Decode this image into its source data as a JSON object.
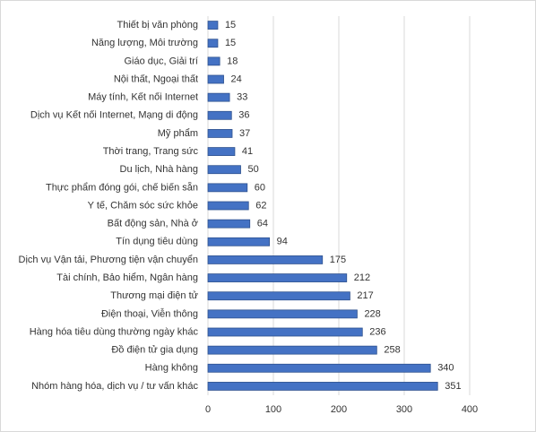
{
  "chart_data": {
    "type": "bar",
    "orientation": "horizontal",
    "categories": [
      "Thiết bị văn phòng",
      "Năng lượng, Môi trường",
      "Giáo dục, Giải trí",
      "Nội thất, Ngoại thất",
      "Máy tính, Kết nối Internet",
      "Dịch vụ Kết nối Internet, Mạng di động",
      "Mỹ phẩm",
      "Thời trang, Trang sức",
      "Du lịch, Nhà hàng",
      "Thực phẩm đóng gói, chế biến sẵn",
      "Y tế, Chăm sóc sức khỏe",
      "Bất động sản, Nhà ở",
      "Tín dụng tiêu dùng",
      "Dịch vụ Vận tải,  Phương tiện vận chuyển",
      "Tài chính, Bảo hiểm, Ngân hàng",
      "Thương mại điện tử",
      "Điện thoại, Viễn thông",
      "Hàng hóa tiêu dùng thường ngày khác",
      "Đồ điện tử gia dụng",
      "Hàng không",
      "Nhóm hàng hóa, dịch vụ / tư vấn khác"
    ],
    "values": [
      15,
      15,
      18,
      24,
      33,
      36,
      37,
      41,
      50,
      60,
      62,
      64,
      94,
      175,
      212,
      217,
      228,
      236,
      258,
      340,
      351
    ],
    "color": "#4472c4",
    "xlim": [
      0,
      400
    ],
    "xticks": [
      0,
      100,
      200,
      300,
      400
    ],
    "grid": true
  }
}
